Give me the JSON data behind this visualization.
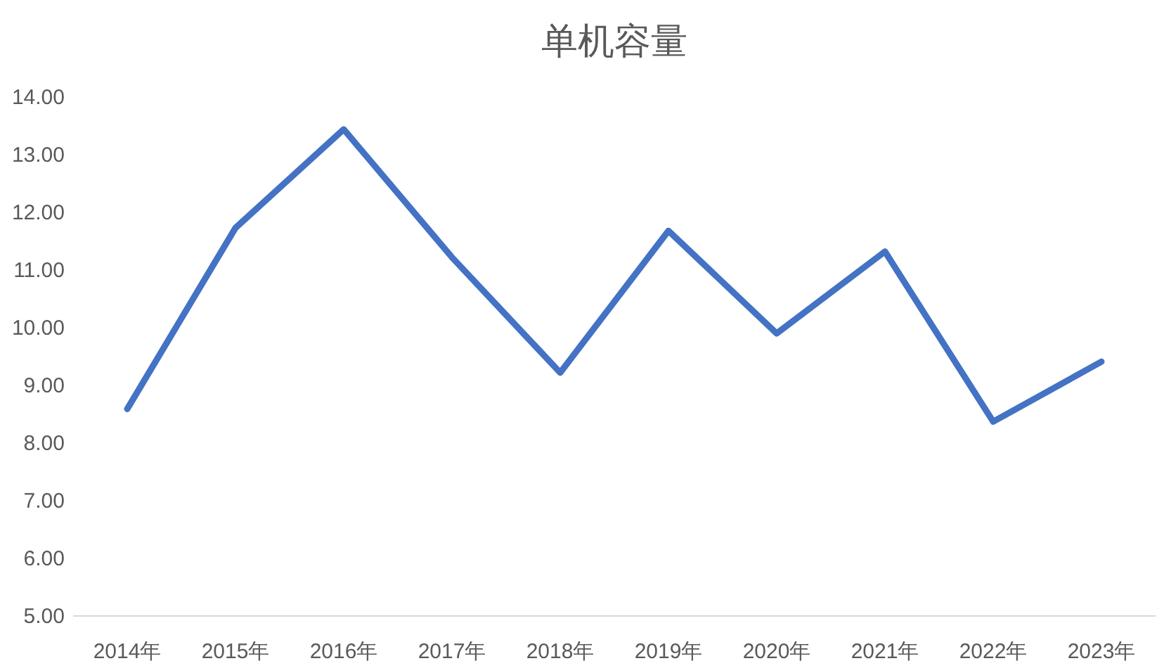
{
  "chart_data": {
    "type": "line",
    "title": "单机容量",
    "categories": [
      "2014年",
      "2015年",
      "2016年",
      "2017年",
      "2018年",
      "2019年",
      "2020年",
      "2021年",
      "2022年",
      "2023年"
    ],
    "series": [
      {
        "color": "#4472c4",
        "values": [
          8.59,
          11.73,
          13.44,
          11.22,
          9.22,
          11.68,
          9.9,
          11.32,
          8.37,
          9.41
        ]
      }
    ],
    "ylim": [
      5,
      14
    ],
    "yticks": [
      {
        "value": 5,
        "label": "5.00"
      },
      {
        "value": 6,
        "label": "6.00"
      },
      {
        "value": 7,
        "label": "7.00"
      },
      {
        "value": 8,
        "label": "8.00"
      },
      {
        "value": 9,
        "label": "9.00"
      },
      {
        "value": 10,
        "label": "10.00"
      },
      {
        "value": 11,
        "label": "11.00"
      },
      {
        "value": 12,
        "label": "12.00"
      },
      {
        "value": 13,
        "label": "13.00"
      },
      {
        "value": 14,
        "label": "14.00"
      }
    ],
    "grid": false,
    "marker": "none",
    "line_style": "solid"
  }
}
